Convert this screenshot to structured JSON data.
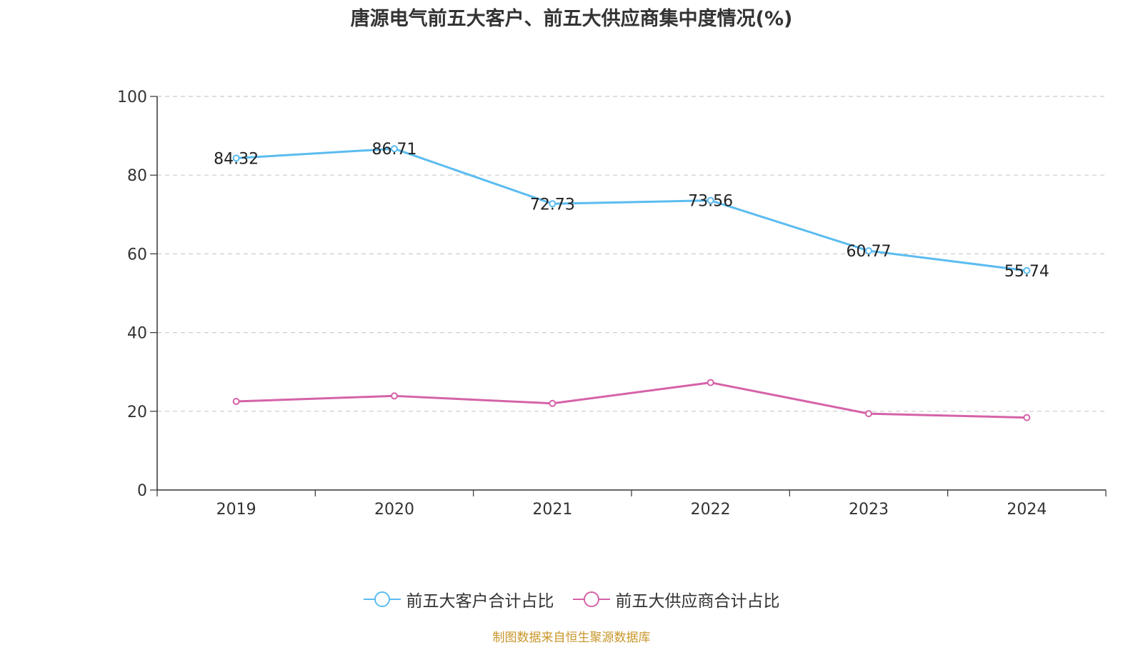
{
  "chart_data": {
    "type": "line",
    "title": "唐源电气前五大客户、前五大供应商集中度情况(%)",
    "categories": [
      "2019",
      "2020",
      "2021",
      "2022",
      "2023",
      "2024"
    ],
    "ylim": [
      0,
      100
    ],
    "yticks": [
      0,
      20,
      40,
      60,
      80,
      100
    ],
    "grid": true,
    "legend_position": "bottom",
    "series": [
      {
        "name": "前五大客户合计占比",
        "values": [
          84.32,
          86.71,
          72.73,
          73.56,
          60.77,
          55.74
        ],
        "labels": [
          "84.32",
          "86.71",
          "72.73",
          "73.56",
          "60.77",
          "55.74"
        ],
        "color": "#5bbcf0"
      },
      {
        "name": "前五大供应商合计占比",
        "values": [
          22.5,
          23.9,
          22.0,
          27.3,
          19.4,
          18.4
        ],
        "color": "#d563a8"
      }
    ]
  },
  "source": "制图数据来自恒生聚源数据库"
}
